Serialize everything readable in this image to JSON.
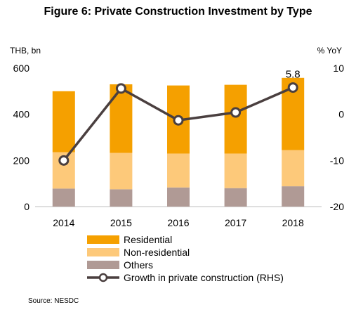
{
  "title": "Figure 6: Private Construction Investment by Type",
  "source": "Source: NESDC",
  "chart_data": {
    "type": "bar",
    "stacked": true,
    "title": "Figure 6: Private Construction Investment by Type",
    "categories": [
      "2014",
      "2015",
      "2016",
      "2017",
      "2018"
    ],
    "left_axis": {
      "label": "THB, bn",
      "min": 0,
      "max": 600,
      "ticks": [
        "0",
        "200",
        "400",
        "600"
      ]
    },
    "right_axis": {
      "label": "% YoY",
      "min": -20,
      "max": 10,
      "ticks": [
        "-20",
        "-10",
        "0",
        "10"
      ]
    },
    "series": [
      {
        "name": "Others",
        "kind": "bar",
        "axis": "left",
        "color": "#b09a95",
        "values": [
          78,
          75,
          83,
          80,
          88
        ]
      },
      {
        "name": "Non-residential",
        "kind": "bar",
        "axis": "left",
        "color": "#fdc97a",
        "values": [
          158,
          158,
          147,
          150,
          157
        ]
      },
      {
        "name": "Residential",
        "kind": "bar",
        "axis": "left",
        "color": "#f5a000",
        "values": [
          264,
          297,
          295,
          298,
          313
        ]
      },
      {
        "name": "Growth in private construction (RHS)",
        "kind": "line",
        "axis": "right",
        "color": "#4a3f3f",
        "values": [
          -10.0,
          5.6,
          -1.3,
          0.4,
          5.8
        ]
      }
    ],
    "data_labels": [
      {
        "category": "2018",
        "series": "Growth in private construction (RHS)",
        "text": "5.8"
      }
    ],
    "legend": {
      "position": "bottom",
      "order": [
        "Residential",
        "Non-residential",
        "Others",
        "Growth in private construction (RHS)"
      ]
    },
    "grid": false
  }
}
